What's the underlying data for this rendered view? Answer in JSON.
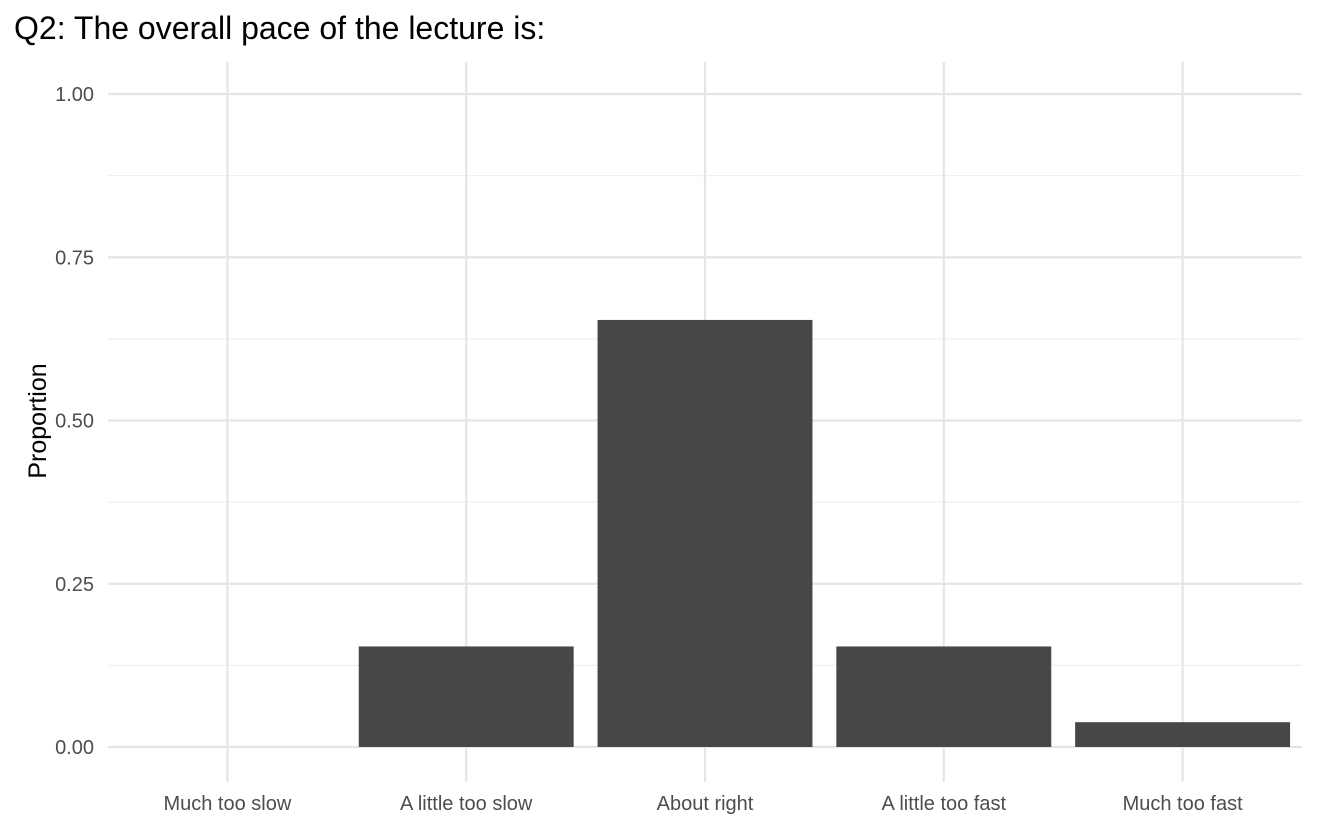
{
  "chart_data": {
    "type": "bar",
    "title": "Q2: The overall pace of the lecture is:",
    "xlabel": "",
    "ylabel": "Proportion",
    "categories": [
      "Much too slow",
      "A little too slow",
      "About right",
      "A little too fast",
      "Much too fast"
    ],
    "values": [
      0,
      0.154,
      0.654,
      0.154,
      0.038
    ],
    "ylim": [
      0,
      1
    ],
    "yticks": [
      "0.00",
      "0.25",
      "0.50",
      "0.75",
      "1.00"
    ],
    "grid": true,
    "legend": "none",
    "colors": {
      "bar": "#474747",
      "grid_major": "#e5e5e5",
      "grid_minor": "#efefef",
      "background": "#ffffff"
    }
  }
}
